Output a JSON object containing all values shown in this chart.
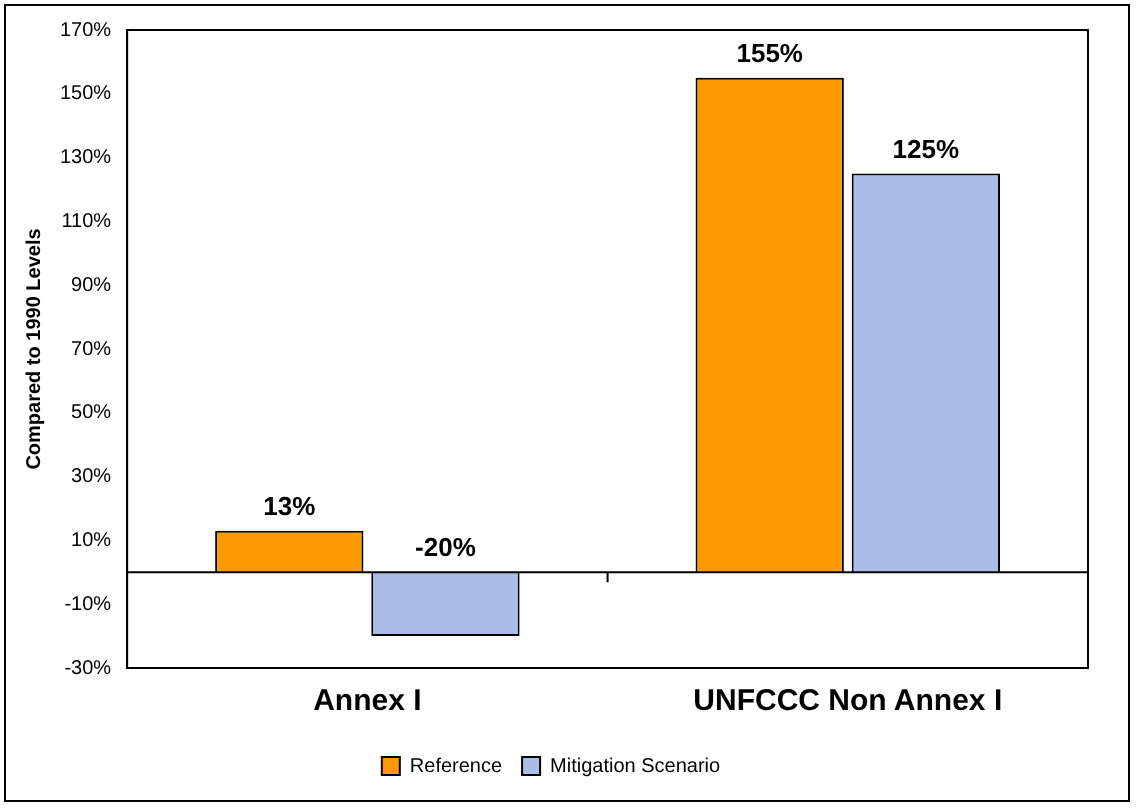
{
  "chart_data": {
    "type": "bar",
    "ylabel": "Compared to 1990 Levels",
    "categories": [
      "Annex I",
      "UNFCCC Non Annex I"
    ],
    "series": [
      {
        "name": "Reference",
        "color": "#ff9900",
        "values": [
          13,
          155
        ],
        "value_labels": [
          "13%",
          "155%"
        ]
      },
      {
        "name": "Mitigation Scenario",
        "color": "#a9bde8",
        "values": [
          -20,
          125
        ],
        "value_labels": [
          "-20%",
          "125%"
        ]
      }
    ],
    "ylim": [
      -30,
      170
    ],
    "yticks": [
      {
        "value": -30,
        "label": "-30%"
      },
      {
        "value": -10,
        "label": "-10%"
      },
      {
        "value": 10,
        "label": "10%"
      },
      {
        "value": 30,
        "label": "30%"
      },
      {
        "value": 50,
        "label": "50%"
      },
      {
        "value": 70,
        "label": "70%"
      },
      {
        "value": 90,
        "label": "90%"
      },
      {
        "value": 110,
        "label": "110%"
      },
      {
        "value": 130,
        "label": "130%"
      },
      {
        "value": 150,
        "label": "150%"
      },
      {
        "value": 170,
        "label": "170%"
      }
    ],
    "grid": false,
    "legend": "bottom"
  }
}
